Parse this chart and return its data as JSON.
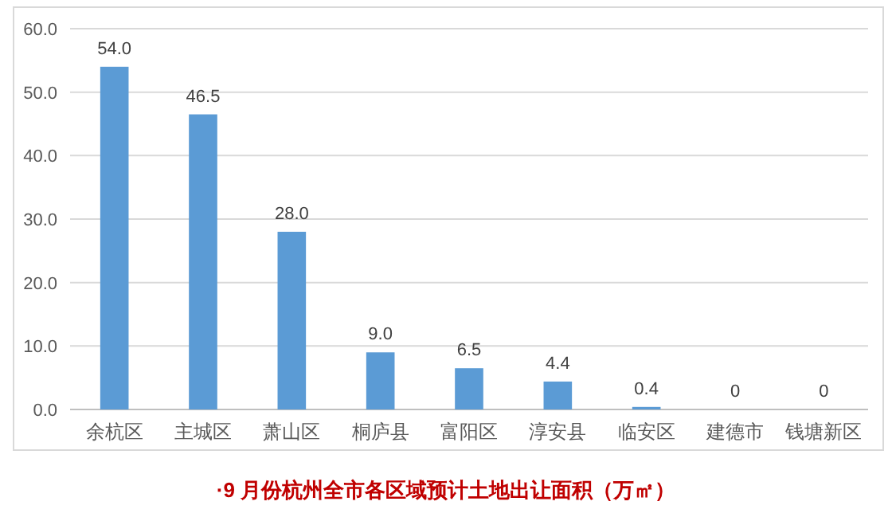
{
  "chart_data": {
    "type": "bar",
    "title": "·9 月份杭州全市各区域预计土地出让面积（万㎡）",
    "categories": [
      "余杭区",
      "主城区",
      "萧山区",
      "桐庐县",
      "富阳区",
      "淳安县",
      "临安区",
      "建德市",
      "钱塘新区"
    ],
    "values": [
      54.0,
      46.5,
      28.0,
      9.0,
      6.5,
      4.4,
      0.4,
      0,
      0
    ],
    "value_labels": [
      "54.0",
      "46.5",
      "28.0",
      "9.0",
      "6.5",
      "4.4",
      "0.4",
      "0",
      "0"
    ],
    "color": "#5b9bd5",
    "ylim": [
      0,
      60
    ],
    "yticks": [
      {
        "value": 0,
        "label": "0.0"
      },
      {
        "value": 10,
        "label": "10.0"
      },
      {
        "value": 20,
        "label": "20.0"
      },
      {
        "value": 30,
        "label": "30.0"
      },
      {
        "value": 40,
        "label": "40.0"
      },
      {
        "value": 50,
        "label": "50.0"
      },
      {
        "value": 60,
        "label": "60.0"
      }
    ],
    "grid": "y"
  }
}
